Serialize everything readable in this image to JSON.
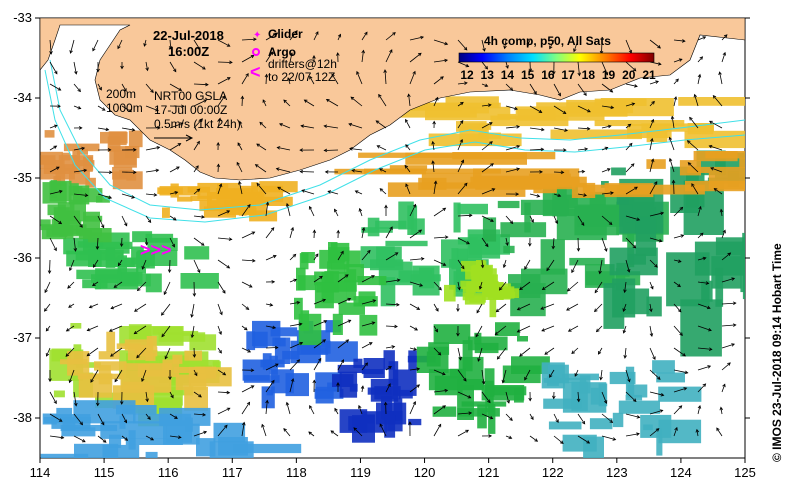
{
  "title": {
    "date": "22-Jul-2018",
    "time": "16:00Z"
  },
  "legend": {
    "glider": "Glider",
    "argo": "Argo",
    "drifters_line1": "drifters@12h",
    "drifters_line2": "to 22/07 12Z",
    "depth_200": "200m",
    "depth_1000": "1000m",
    "gsla_line1": "NRT00 GSLA",
    "gsla_line2": "17-Jul 00:00Z",
    "speed_scale": "0.5m/s (1kt 24h)"
  },
  "colorbar": {
    "title": "4h comp, p50, All Sats",
    "ticks": [
      "12",
      "13",
      "14",
      "15",
      "16",
      "17",
      "18",
      "19",
      "20",
      "21"
    ],
    "colors": [
      "#000080",
      "#0000ff",
      "#0080ff",
      "#00ffff",
      "#80ff80",
      "#ffff00",
      "#ff8000",
      "#ff0000",
      "#800000"
    ]
  },
  "axes": {
    "x_ticks": [
      "114",
      "115",
      "116",
      "117",
      "118",
      "119",
      "120",
      "121",
      "122",
      "123",
      "124",
      "125"
    ],
    "y_ticks": [
      "-33",
      "-34",
      "-35",
      "-36",
      "-37",
      "-38"
    ],
    "lon_range": [
      114,
      125
    ],
    "lat_range": [
      -38.5,
      -33
    ]
  },
  "credit": "© IMOS 23-Jul-2018 09:14 Hobart Time",
  "colors": {
    "land": "#f9c89a",
    "ocean_bg": "#ffffff",
    "isobath": "#40e0e8",
    "marker": "#ff00ff"
  }
}
